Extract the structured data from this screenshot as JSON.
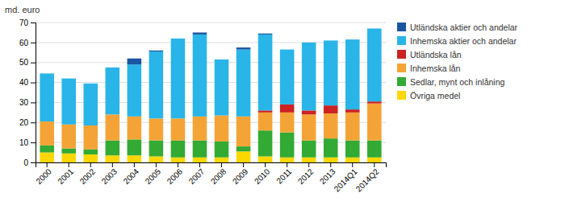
{
  "chart_data": {
    "type": "bar",
    "stacked": true,
    "grid": true,
    "legend": "right",
    "ylabel": "md. euro",
    "categories": [
      "2000",
      "2001",
      "2002",
      "2003",
      "2004",
      "2005",
      "2006",
      "2007",
      "2008",
      "2009",
      "2010",
      "2011",
      "2012",
      "2013",
      "2014Q1",
      "2014Q2"
    ],
    "series": [
      {
        "name": "Övriga medel",
        "color": "#FFD700",
        "values": [
          5.0,
          4.5,
          4.0,
          3.5,
          3.5,
          3.0,
          2.5,
          2.5,
          2.5,
          5.5,
          3.0,
          2.5,
          2.5,
          2.5,
          2.5,
          2.5
        ]
      },
      {
        "name": "Sedlar, mynt och inlåning",
        "color": "#33AA33",
        "values": [
          3.5,
          2.5,
          2.5,
          7.5,
          8.0,
          8.0,
          8.5,
          8.5,
          8.0,
          2.5,
          13.0,
          12.5,
          8.5,
          9.5,
          8.5,
          8.5
        ]
      },
      {
        "name": "Inhemska lån",
        "color": "#F4A436",
        "values": [
          12.0,
          12.0,
          12.0,
          13.0,
          11.5,
          11.0,
          11.0,
          12.0,
          13.0,
          15.0,
          9.0,
          10.0,
          13.0,
          12.5,
          14.0,
          18.5
        ]
      },
      {
        "name": "Utländska lån",
        "color": "#CC2222",
        "values": [
          0.0,
          0.0,
          0.0,
          0.0,
          0.0,
          0.0,
          0.0,
          0.0,
          0.0,
          0.0,
          1.0,
          4.0,
          2.0,
          4.0,
          1.5,
          1.0
        ]
      },
      {
        "name": "Inhemska aktier och andelar",
        "color": "#29B5E8",
        "values": [
          24.0,
          23.0,
          21.0,
          23.5,
          26.0,
          33.5,
          40.0,
          41.0,
          28.0,
          33.5,
          38.0,
          27.5,
          34.0,
          32.5,
          35.0,
          36.5
        ]
      },
      {
        "name": "Utländska aktier och andelar",
        "color": "#1A56A0",
        "values": [
          0.0,
          0.0,
          0.0,
          0.0,
          3.0,
          0.5,
          0.0,
          1.0,
          0.0,
          1.0,
          0.5,
          0.0,
          0.0,
          0.0,
          0.0,
          0.0
        ]
      }
    ],
    "ylim": [
      0,
      70
    ],
    "yticks": [
      0,
      10,
      20,
      30,
      40,
      50,
      60,
      70
    ]
  }
}
